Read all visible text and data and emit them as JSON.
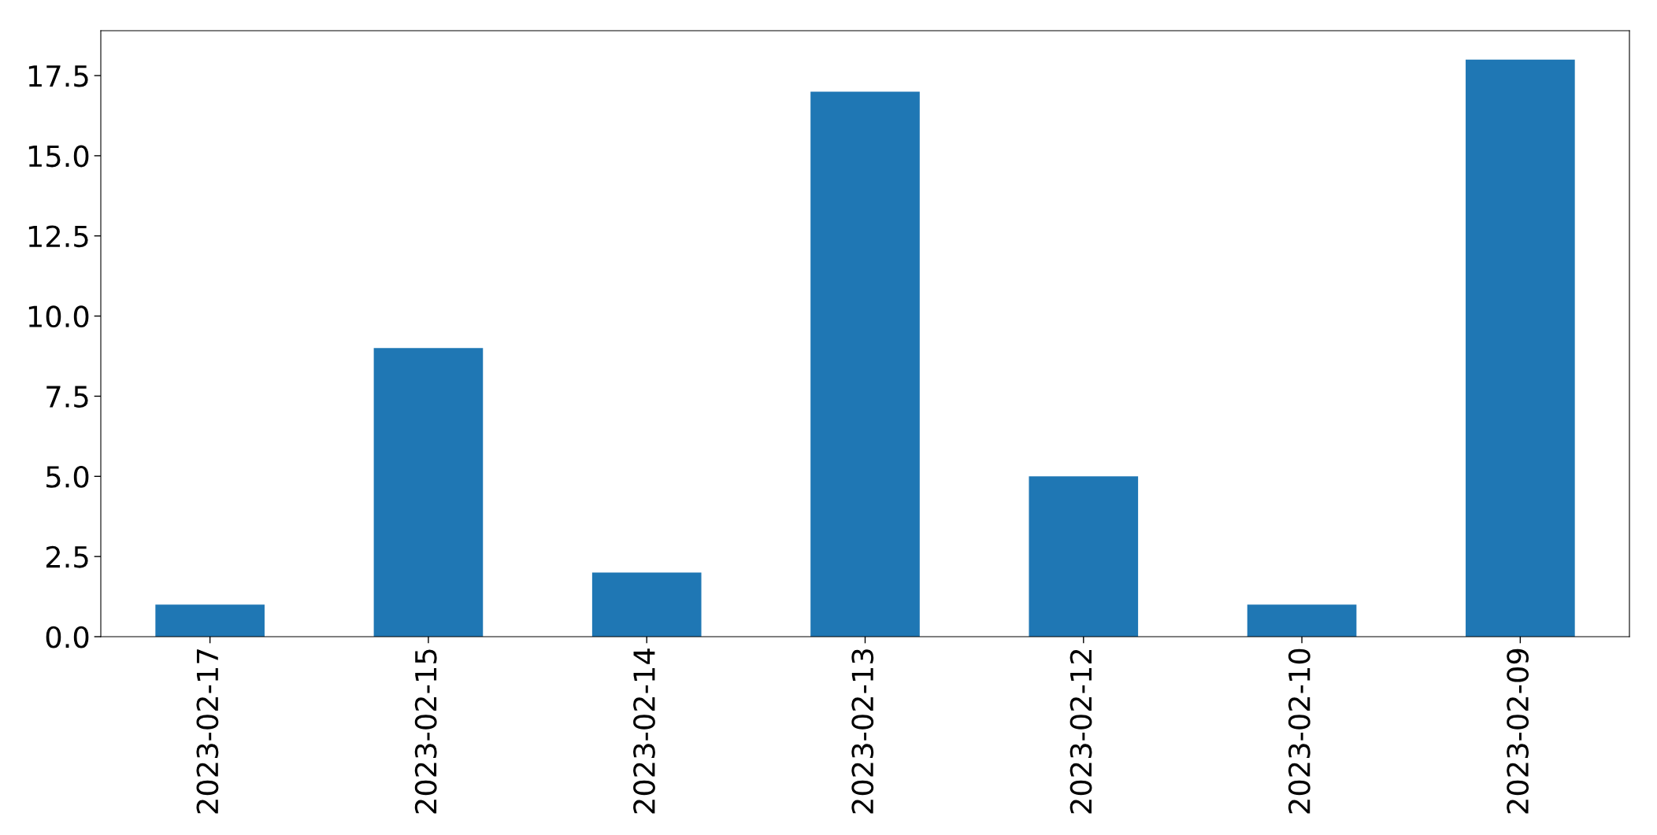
{
  "chart_data": {
    "type": "bar",
    "categories": [
      "2023-02-17",
      "2023-02-15",
      "2023-02-14",
      "2023-02-13",
      "2023-02-12",
      "2023-02-10",
      "2023-02-09"
    ],
    "values": [
      1,
      9,
      2,
      17,
      5,
      1,
      18
    ],
    "color": "#1f77b4",
    "ylim": [
      0,
      18.9
    ],
    "yticks": [
      {
        "value": 0,
        "label": "0.0"
      },
      2.5,
      {
        "value": 5,
        "label": "5.0"
      },
      7.5,
      {
        "value": 10,
        "label": "10.0"
      },
      12.5,
      {
        "value": 15,
        "label": "15.0"
      },
      17.5
    ],
    "grid": false,
    "legend": false
  }
}
